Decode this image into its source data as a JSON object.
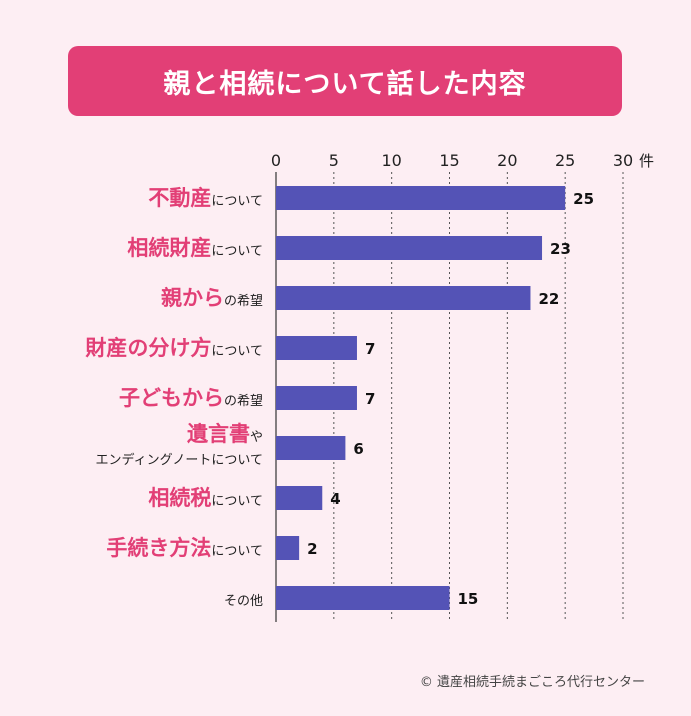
{
  "title": "親と相続について話した内容",
  "unit": "件",
  "footer": "© 遺産相続手続まごころ代行センター",
  "colors": {
    "title_bg": "#e23f76",
    "bar": "#5453b6",
    "emph": "#e23f76",
    "background": "#fdeef3"
  },
  "chart_data": {
    "type": "bar",
    "orientation": "horizontal",
    "title": "親と相続について話した内容",
    "xlim": [
      0,
      30
    ],
    "x_ticks": [
      "0",
      "5",
      "10",
      "15",
      "20",
      "25",
      "30"
    ],
    "unit": "件",
    "grid": true,
    "categories": [
      {
        "lines": [
          [
            {
              "text": "不動産",
              "emph": true
            },
            {
              "text": "について",
              "emph": false
            }
          ]
        ]
      },
      {
        "lines": [
          [
            {
              "text": "相続財産",
              "emph": true
            },
            {
              "text": "について",
              "emph": false
            }
          ]
        ]
      },
      {
        "lines": [
          [
            {
              "text": "親から",
              "emph": true
            },
            {
              "text": "の希望",
              "emph": false
            }
          ]
        ]
      },
      {
        "lines": [
          [
            {
              "text": "財産の分け方",
              "emph": true
            },
            {
              "text": "について",
              "emph": false
            }
          ]
        ]
      },
      {
        "lines": [
          [
            {
              "text": "子どもから",
              "emph": true
            },
            {
              "text": "の希望",
              "emph": false
            }
          ]
        ]
      },
      {
        "lines": [
          [
            {
              "text": "遺言書",
              "emph": true
            },
            {
              "text": "や",
              "emph": false
            }
          ],
          [
            {
              "text": "エンディングノートについて",
              "emph": false
            }
          ]
        ]
      },
      {
        "lines": [
          [
            {
              "text": "相続税",
              "emph": true
            },
            {
              "text": "について",
              "emph": false
            }
          ]
        ]
      },
      {
        "lines": [
          [
            {
              "text": "手続き方法",
              "emph": true
            },
            {
              "text": "について",
              "emph": false
            }
          ]
        ]
      },
      {
        "lines": [
          [
            {
              "text": "その他",
              "emph": false
            }
          ]
        ]
      }
    ],
    "values": [
      25,
      23,
      22,
      7,
      7,
      6,
      4,
      2,
      15
    ]
  }
}
